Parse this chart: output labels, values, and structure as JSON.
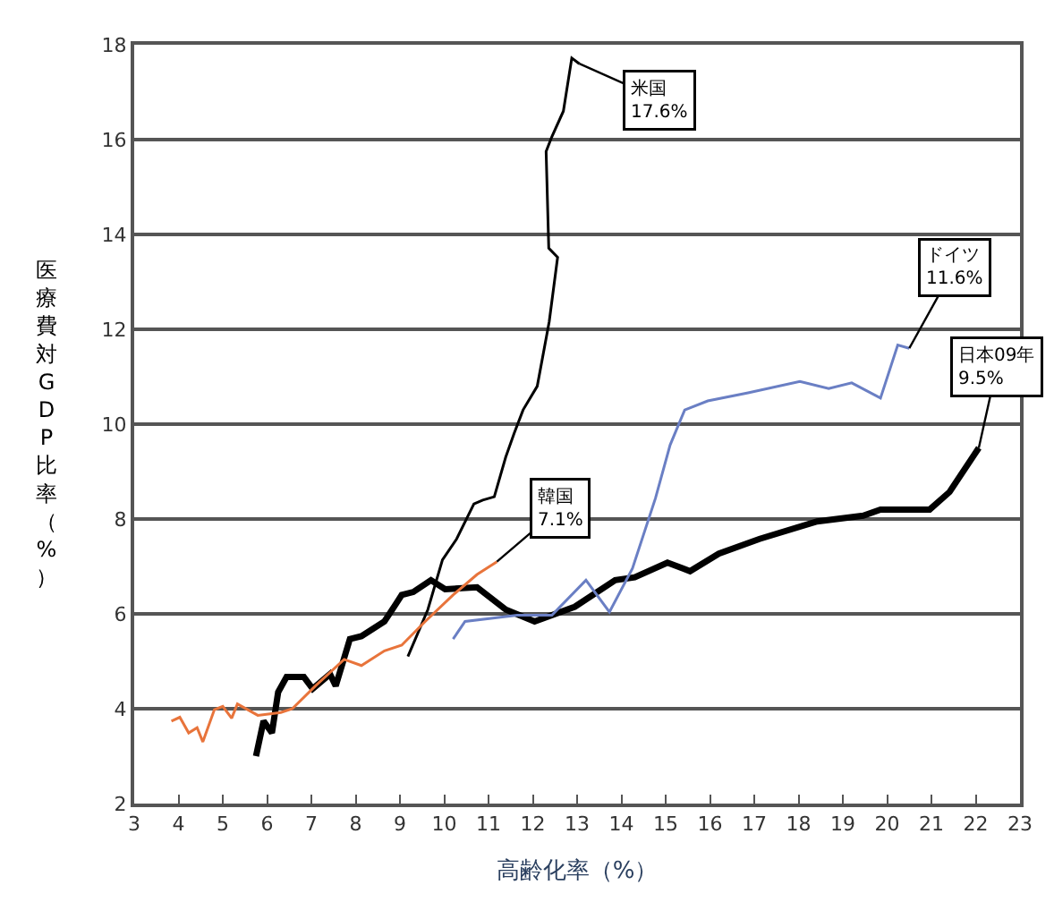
{
  "chart_data": {
    "type": "line",
    "xlabel": "高齢化率（%）",
    "ylabel": "医療費対GDP比率（%）",
    "xlim": [
      3,
      23
    ],
    "xticks": [
      3,
      4,
      5,
      6,
      7,
      8,
      9,
      10,
      11,
      12,
      13,
      14,
      15,
      16,
      17,
      18,
      19,
      20,
      21,
      22,
      23
    ],
    "ylim": [
      2,
      18
    ],
    "yticks": [
      2,
      4,
      6,
      8,
      10,
      12,
      14,
      16,
      18
    ],
    "grid": "y",
    "marker": "none",
    "line_style": "solid",
    "series": [
      {
        "color": "#000000",
        "x": [
          5.75,
          5.92,
          6.11,
          6.25,
          6.44,
          6.83,
          7.03,
          7.42,
          7.55,
          7.87,
          8.13,
          8.65,
          8.91,
          9.04,
          9.3,
          9.7,
          10.02,
          10.74,
          11.39,
          12.04,
          12.95,
          13.86,
          14.3,
          15.04,
          15.55,
          16.2,
          17.12,
          18.42,
          19.46,
          19.85,
          20.96,
          21.41,
          22.07
        ],
        "values": [
          3.0,
          3.74,
          3.49,
          4.35,
          4.67,
          4.67,
          4.42,
          4.73,
          4.48,
          5.47,
          5.53,
          5.84,
          6.21,
          6.4,
          6.46,
          6.71,
          6.52,
          6.56,
          6.09,
          5.84,
          6.15,
          6.71,
          6.77,
          7.08,
          6.9,
          7.27,
          7.58,
          7.95,
          8.07,
          8.2,
          8.2,
          8.57,
          9.5
        ]
      },
      {
        "color": "#000000",
        "x": [
          9.18,
          9.63,
          9.96,
          10.28,
          10.67,
          10.87,
          11.13,
          11.39,
          11.58,
          11.78,
          12.1,
          12.37,
          12.56,
          12.36,
          12.3,
          12.43,
          12.69,
          12.88,
          13.05
        ],
        "values": [
          5.1,
          6.09,
          7.14,
          7.58,
          8.32,
          8.4,
          8.47,
          9.31,
          9.81,
          10.3,
          10.8,
          12.16,
          13.52,
          13.71,
          15.75,
          16.06,
          16.6,
          17.72,
          17.6
        ]
      },
      {
        "color": "#e8743b",
        "x": [
          3.84,
          4.03,
          4.23,
          4.42,
          4.55,
          4.81,
          5.0,
          5.2,
          5.33,
          5.79,
          6.31,
          6.57,
          7.09,
          7.74,
          8.13,
          8.65,
          9.04,
          9.57,
          10.2,
          10.74,
          11.19
        ],
        "values": [
          3.74,
          3.82,
          3.49,
          3.6,
          3.3,
          3.98,
          4.05,
          3.8,
          4.1,
          3.86,
          3.92,
          4.0,
          4.48,
          5.04,
          4.91,
          5.22,
          5.34,
          5.84,
          6.4,
          6.83,
          7.1
        ]
      },
      {
        "color": "#6a7fc4",
        "x": [
          10.2,
          10.47,
          11.65,
          12.43,
          13.2,
          13.73,
          14.25,
          14.77,
          15.1,
          15.43,
          15.95,
          16.86,
          18.03,
          18.68,
          19.2,
          19.85,
          20.24,
          20.5
        ],
        "values": [
          5.47,
          5.84,
          5.97,
          5.97,
          6.71,
          6.04,
          6.96,
          8.44,
          9.56,
          10.3,
          10.49,
          10.66,
          10.9,
          10.75,
          10.87,
          10.55,
          11.67,
          11.6
        ]
      }
    ],
    "annotations": [
      {
        "text": "米国\n17.6%",
        "x": 13.05,
        "y": 17.6
      },
      {
        "text": "ドイツ\n11.6%",
        "x": 20.5,
        "y": 11.6
      },
      {
        "text": "日本09年\n9.5%",
        "x": 22.07,
        "y": 9.5
      },
      {
        "text": "韓国\n7.1%",
        "x": 11.19,
        "y": 7.1
      }
    ]
  }
}
